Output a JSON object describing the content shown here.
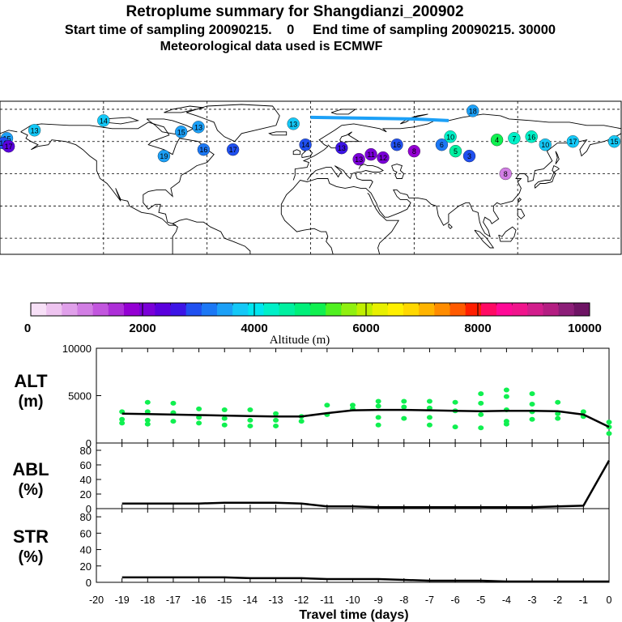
{
  "header": {
    "title": "Retroplume summary for Shangdianzi_200902",
    "line2": "Start time of sampling 20090215.    0     End time of sampling 20090215. 30000",
    "line3": "Meteorological data used is ECMWF"
  },
  "colorbar": {
    "ticks": [
      "0",
      "2000",
      "4000",
      "6000",
      "8000",
      "10000"
    ],
    "label": "Altitude (m)",
    "colors": [
      "#f7e0f7",
      "#eec4f0",
      "#e0a0ea",
      "#d27ee4",
      "#c256de",
      "#ad2fd8",
      "#9400d3",
      "#7a00d8",
      "#5a00dd",
      "#3c14e6",
      "#2050f0",
      "#1c78f5",
      "#1ca0f7",
      "#14c8f7",
      "#00e6f0",
      "#00f0c8",
      "#00f0a0",
      "#00f07a",
      "#10f050",
      "#50f020",
      "#90f010",
      "#c0f000",
      "#e8f000",
      "#fff000",
      "#ffd800",
      "#ffb400",
      "#ff8c00",
      "#ff5a00",
      "#ff1e00",
      "#ff0a64",
      "#ff0a96",
      "#f0148c",
      "#d21e8c",
      "#b41e82",
      "#8c1e78",
      "#6e1464"
    ]
  },
  "plot_labels": {
    "alt": "ALT",
    "alt_unit": "(m)",
    "abl": "ABL",
    "abl_unit": "(%)",
    "str": "STR",
    "str_unit": "(%)",
    "xlabel": "Travel time (days)"
  },
  "chart_data": [
    {
      "type": "line",
      "name": "altitude",
      "title": "ALT (m)",
      "ylim": [
        0,
        10000
      ],
      "yticks": [
        "0",
        "5000",
        "10000"
      ],
      "x": [
        -19,
        -18,
        -17,
        -16,
        -15,
        -14,
        -13,
        -12,
        -11,
        -10,
        -9,
        -8,
        -7,
        -6,
        -5,
        -4,
        -3,
        -2,
        -1,
        0
      ],
      "values": [
        3100,
        3050,
        3000,
        2950,
        2900,
        2850,
        2800,
        2800,
        3150,
        3450,
        3500,
        3500,
        3450,
        3400,
        3350,
        3400,
        3400,
        3350,
        3000,
        1700
      ],
      "scatter_color": "#10f050",
      "scatter": [
        {
          "x": -19,
          "y": [
            3300,
            2500,
            2100
          ]
        },
        {
          "x": -18,
          "y": [
            4300,
            3300,
            2400,
            2000
          ]
        },
        {
          "x": -17,
          "y": [
            4200,
            3200,
            2300
          ]
        },
        {
          "x": -16,
          "y": [
            3600,
            2700,
            2100
          ]
        },
        {
          "x": -15,
          "y": [
            3500,
            2600,
            1900
          ]
        },
        {
          "x": -14,
          "y": [
            3500,
            2400,
            1800
          ]
        },
        {
          "x": -13,
          "y": [
            3100,
            2400,
            1800
          ]
        },
        {
          "x": -12,
          "y": [
            2800,
            2300
          ]
        },
        {
          "x": -11,
          "y": [
            4000,
            3000
          ]
        },
        {
          "x": -10,
          "y": [
            4000,
            3600
          ]
        },
        {
          "x": -9,
          "y": [
            4400,
            3900,
            2700,
            1900
          ]
        },
        {
          "x": -8,
          "y": [
            4400,
            3800,
            2600
          ]
        },
        {
          "x": -7,
          "y": [
            4400,
            3700,
            2700,
            1900
          ]
        },
        {
          "x": -6,
          "y": [
            4300,
            3400,
            1700
          ]
        },
        {
          "x": -5,
          "y": [
            5200,
            4200,
            3000,
            1600
          ]
        },
        {
          "x": -4,
          "y": [
            5600,
            4900,
            3500,
            2300,
            2000
          ]
        },
        {
          "x": -3,
          "y": [
            5200,
            4100,
            3300,
            2500
          ]
        },
        {
          "x": -2,
          "y": [
            4300,
            3100,
            2600
          ]
        },
        {
          "x": -1,
          "y": [
            3300,
            2800
          ]
        },
        {
          "x": 0,
          "y": [
            2200,
            1700,
            1000
          ]
        }
      ]
    },
    {
      "type": "line",
      "name": "abl",
      "title": "ABL (%)",
      "ylim": [
        0,
        90
      ],
      "yticks": [
        "0",
        "20",
        "40",
        "60",
        "80"
      ],
      "x": [
        -19,
        -18,
        -17,
        -16,
        -15,
        -14,
        -13,
        -12,
        -11,
        -10,
        -9,
        -8,
        -7,
        -6,
        -5,
        -4,
        -3,
        -2,
        -1,
        0
      ],
      "values": [
        7,
        7,
        7,
        7,
        8,
        8,
        8,
        7,
        3,
        3,
        2,
        2,
        2,
        2,
        2,
        2,
        2,
        3,
        4,
        66
      ]
    },
    {
      "type": "line",
      "name": "str",
      "title": "STR (%)",
      "ylim": [
        0,
        90
      ],
      "yticks": [
        "0",
        "20",
        "40",
        "60",
        "80"
      ],
      "x": [
        -19,
        -18,
        -17,
        -16,
        -15,
        -14,
        -13,
        -12,
        -11,
        -10,
        -9,
        -8,
        -7,
        -6,
        -5,
        -4,
        -3,
        -2,
        -1,
        0
      ],
      "values": [
        6,
        6,
        6,
        6,
        6,
        5,
        5,
        5,
        4,
        4,
        4,
        3,
        2,
        2,
        2,
        1,
        1,
        1,
        1,
        1
      ],
      "xticks": [
        "-20",
        "-19",
        "-18",
        "-17",
        "-16",
        "-15",
        "-14",
        "-13",
        "-12",
        "-11",
        "-10",
        "-9",
        "-8",
        "-7",
        "-6",
        "-5",
        "-4",
        "-3",
        "-2",
        "-1",
        "0"
      ]
    }
  ],
  "map_markers": [
    {
      "label": "15",
      "lon": -176,
      "lat": 62,
      "c": "#1ca0f7"
    },
    {
      "label": "16",
      "lon": -178,
      "lat": 59,
      "c": "#2050f0"
    },
    {
      "label": "17",
      "lon": -175,
      "lat": 57,
      "c": "#5a00dd"
    },
    {
      "label": "13",
      "lon": -160,
      "lat": 67,
      "c": "#14c8f7"
    },
    {
      "label": "14",
      "lon": -120,
      "lat": 73,
      "c": "#14c8f7"
    },
    {
      "label": "19",
      "lon": -85,
      "lat": 51,
      "c": "#1ca0f7"
    },
    {
      "label": "13",
      "lon": -65,
      "lat": 69,
      "c": "#1ca0f7"
    },
    {
      "label": "15",
      "lon": -75,
      "lat": 66,
      "c": "#1ca0f7"
    },
    {
      "label": "16",
      "lon": -62,
      "lat": 55,
      "c": "#1c78f5"
    },
    {
      "label": "17",
      "lon": -45,
      "lat": 55,
      "c": "#2050f0"
    },
    {
      "label": "13",
      "lon": -10,
      "lat": 71,
      "c": "#14c8f7"
    },
    {
      "label": "14",
      "lon": -3,
      "lat": 58,
      "c": "#2050f0"
    },
    {
      "label": "13",
      "lon": 18,
      "lat": 56,
      "c": "#3c14e6"
    },
    {
      "label": "16",
      "lon": 50,
      "lat": 58,
      "c": "#2050f0"
    },
    {
      "label": "13",
      "lon": 28,
      "lat": 49,
      "c": "#7a00d8"
    },
    {
      "label": "11",
      "lon": 35,
      "lat": 52,
      "c": "#7a00d8"
    },
    {
      "label": "12",
      "lon": 42,
      "lat": 50,
      "c": "#7a00d8"
    },
    {
      "label": "8",
      "lon": 60,
      "lat": 54,
      "c": "#9400d3"
    },
    {
      "label": "6",
      "lon": 76,
      "lat": 58,
      "c": "#1c78f5"
    },
    {
      "label": "10",
      "lon": 81,
      "lat": 63,
      "c": "#00f0c8"
    },
    {
      "label": "5",
      "lon": 84,
      "lat": 54,
      "c": "#00f0a0"
    },
    {
      "label": "3",
      "lon": 92,
      "lat": 51,
      "c": "#2050f0"
    },
    {
      "label": "18",
      "lon": 94,
      "lat": 79,
      "c": "#1ca0f7"
    },
    {
      "label": "4",
      "lon": 108,
      "lat": 61,
      "c": "#10f050"
    },
    {
      "label": "7",
      "lon": 118,
      "lat": 62,
      "c": "#00f0c8"
    },
    {
      "label": "16",
      "lon": 128,
      "lat": 63,
      "c": "#00f0c8"
    },
    {
      "label": "10",
      "lon": 136,
      "lat": 58,
      "c": "#14c8f7"
    },
    {
      "label": "17",
      "lon": 152,
      "lat": 60,
      "c": "#14c8f7"
    },
    {
      "label": "15",
      "lon": 176,
      "lat": 60,
      "c": "#14c8f7"
    },
    {
      "label": "8",
      "lon": 113,
      "lat": 40,
      "c": "#d27ee4"
    }
  ]
}
